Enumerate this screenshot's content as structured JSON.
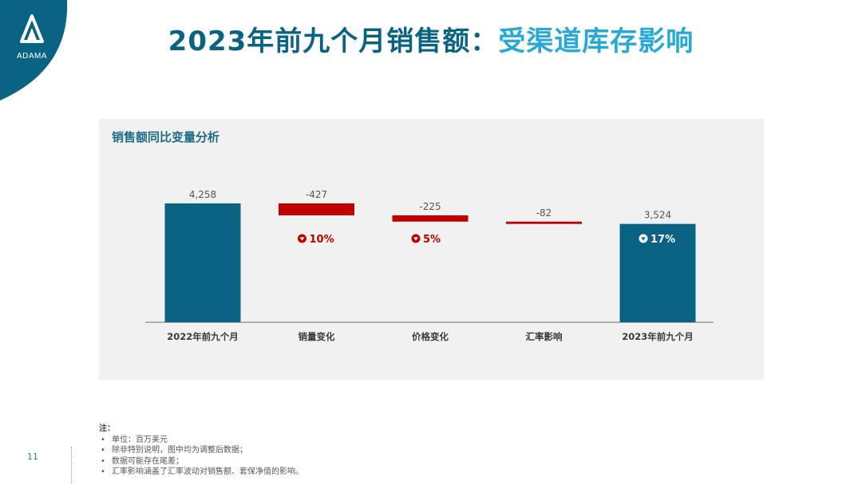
{
  "brand": {
    "logo_text": "ADAMA",
    "color_dark": "#0b6384",
    "color_light": "#26a9d6"
  },
  "header": {
    "title_part1": "2023年前九个月销售额：",
    "title_part2": "受渠道库存影响"
  },
  "panel": {
    "title": "销售额同比变量分析"
  },
  "chart_data": {
    "type": "waterfall",
    "categories": [
      "2022年前九个月",
      "销量变化",
      "价格变化",
      "汇率影响",
      "2023年前九个月"
    ],
    "values": [
      4258,
      -427,
      -225,
      -82,
      3524
    ],
    "value_labels": [
      "4,258",
      "-427",
      "-225",
      "-82",
      "3,524"
    ],
    "kinds": [
      "total",
      "delta",
      "delta",
      "delta",
      "total"
    ],
    "badges": [
      null,
      "10%",
      "5%",
      null,
      "17%"
    ],
    "colors": {
      "total": "#0b6384",
      "negative": "#c00000"
    }
  },
  "notes": {
    "title": "注：",
    "items": [
      "单位：百万美元",
      "除非特别说明，图中均为调整后数据；",
      "数据可能存在尾差；",
      "汇率影响涵盖了汇率波动对销售额、套保净值的影响。"
    ]
  },
  "page_number": "11"
}
